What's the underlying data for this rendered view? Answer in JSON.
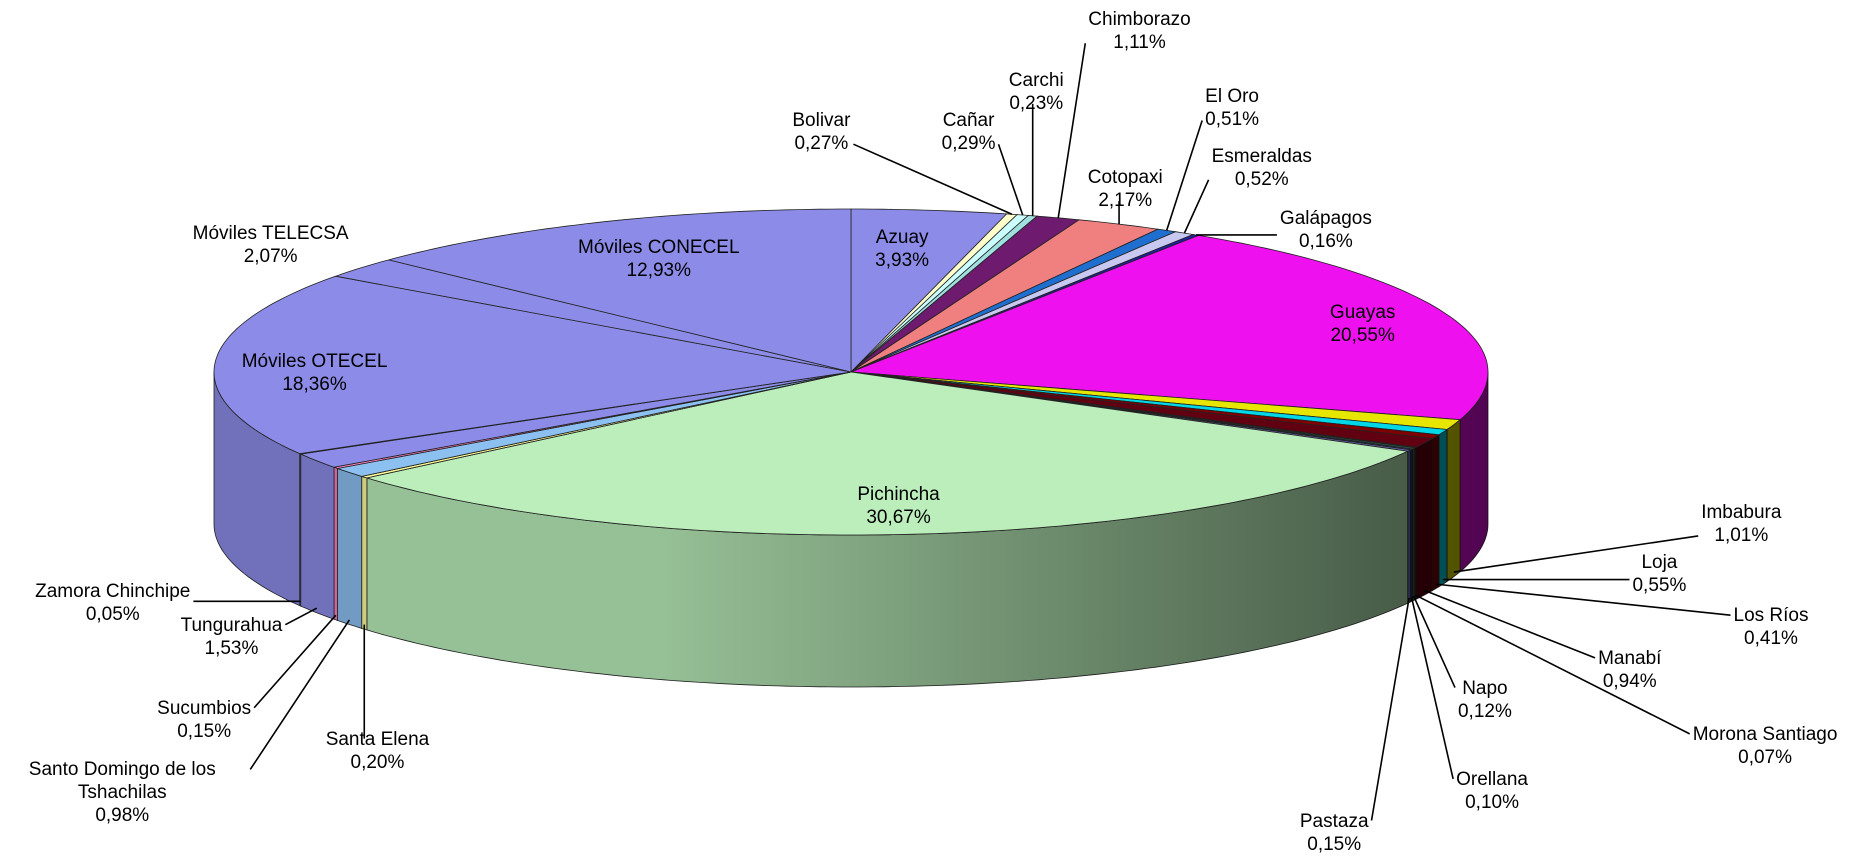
{
  "chart_data": {
    "type": "pie3d",
    "categories": [
      "Azuay",
      "Bolivar",
      "Cañar",
      "Carchi",
      "Chimborazo",
      "Cotopaxi",
      "El Oro",
      "Esmeraldas",
      "Galápagos",
      "Guayas",
      "Imbabura",
      "Loja",
      "Los Ríos",
      "Manabí",
      "Morona Santiago",
      "Napo",
      "Orellana",
      "Pastaza",
      "Pichincha",
      "Santa Elena",
      "Santo Domingo de los Tshachilas",
      "Sucumbios",
      "Tungurahua",
      "Zamora Chinchipe",
      "Móviles OTECEL",
      "Móviles TELECSA",
      "Móviles CONECEL"
    ],
    "values": [
      3.93,
      0.27,
      0.29,
      0.23,
      1.11,
      2.17,
      0.51,
      0.52,
      0.16,
      20.55,
      1.01,
      0.55,
      0.41,
      0.94,
      0.07,
      0.12,
      0.1,
      0.15,
      30.67,
      0.2,
      0.98,
      0.15,
      1.53,
      0.05,
      18.36,
      2.07,
      12.93
    ],
    "value_labels": [
      "3,93%",
      "0,27%",
      "0,29%",
      "0,23%",
      "1,11%",
      "2,17%",
      "0,51%",
      "0,52%",
      "0,16%",
      "20,55%",
      "1,01%",
      "0,55%",
      "0,41%",
      "0,94%",
      "0,07%",
      "0,12%",
      "0,10%",
      "0,15%",
      "30,67%",
      "0,20%",
      "0,98%",
      "0,15%",
      "1,53%",
      "0,05%",
      "18,36%",
      "2,07%",
      "12,93%"
    ],
    "colors": [
      "#8c8ce8",
      "#ffffcc",
      "#ccffff",
      "#a0e0e0",
      "#6e1a6e",
      "#f08080",
      "#1f6fd0",
      "#c8c8f0",
      "#2020a0",
      "#ee10ee",
      "#e6e600",
      "#00d8e8",
      "#800000",
      "#600010",
      "#a00030",
      "#2a6a4a",
      "#303080",
      "#7070c0",
      "#bbeebb",
      "#ffff99",
      "#8cc0f0",
      "#ff80c0",
      "#8c8ce8",
      "#8c8ce8",
      "#8c8ce8",
      "#8c8ce8",
      "#8c8ce8"
    ]
  }
}
